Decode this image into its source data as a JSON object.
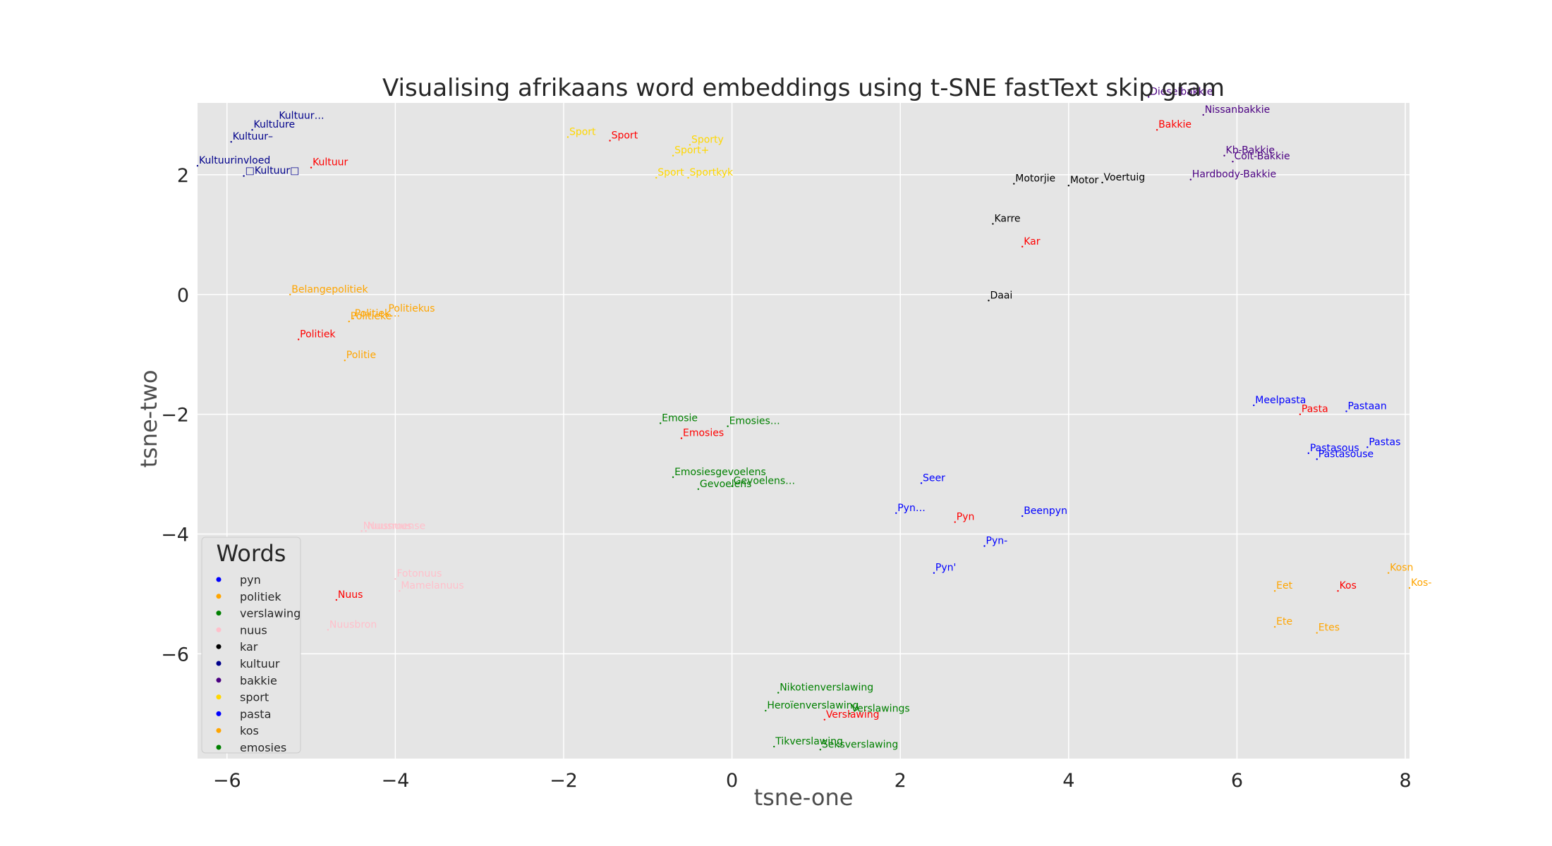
{
  "chart_data": {
    "type": "scatter",
    "title": "Visualising afrikaans word embeddings using t-SNE fastText skip gram",
    "xlabel": "tsne-one",
    "ylabel": "tsne-two",
    "xlim": [
      -6.35,
      8.05
    ],
    "ylim": [
      -7.75,
      3.2
    ],
    "xticks": [
      -6,
      -4,
      -2,
      0,
      2,
      4,
      6,
      8
    ],
    "yticks": [
      -6,
      -4,
      -2,
      0,
      2
    ],
    "xtick_labels": [
      "−6",
      "−4",
      "−2",
      "0",
      "2",
      "4",
      "6",
      "8"
    ],
    "ytick_labels": [
      "−6",
      "−4",
      "−2",
      "0",
      "2"
    ],
    "grid": true,
    "legend": {
      "title": "Words",
      "position": "lower-left",
      "entries": [
        {
          "label": "pyn",
          "color": "#0000ff"
        },
        {
          "label": "politiek",
          "color": "#ffa500"
        },
        {
          "label": "verslawing",
          "color": "#008000"
        },
        {
          "label": "nuus",
          "color": "#ffc0cb"
        },
        {
          "label": "kar",
          "color": "#000000"
        },
        {
          "label": "kultuur",
          "color": "#00008b"
        },
        {
          "label": "bakkie",
          "color": "#4b0082"
        },
        {
          "label": "sport",
          "color": "#ffd700"
        },
        {
          "label": "pasta",
          "color": "#0000ff"
        },
        {
          "label": "kos",
          "color": "#ffa500"
        },
        {
          "label": "emosies",
          "color": "#008000"
        }
      ]
    },
    "series": [
      {
        "name": "pyn",
        "color": "#0000ff",
        "points": [
          {
            "x": 2.65,
            "y": -3.8,
            "label": "Pyn",
            "color": "#ff0000"
          },
          {
            "x": 2.25,
            "y": -3.15,
            "label": "Seer"
          },
          {
            "x": 1.95,
            "y": -3.65,
            "label": "Pyn…"
          },
          {
            "x": 3.45,
            "y": -3.7,
            "label": "Beenpyn"
          },
          {
            "x": 3.0,
            "y": -4.2,
            "label": "Pyn-"
          },
          {
            "x": 2.4,
            "y": -4.65,
            "label": "Pyn'"
          }
        ]
      },
      {
        "name": "politiek",
        "color": "#ffa500",
        "points": [
          {
            "x": -5.15,
            "y": -0.75,
            "label": "Politiek",
            "color": "#ff0000"
          },
          {
            "x": -5.25,
            "y": 0.0,
            "label": "Belangepolitiek"
          },
          {
            "x": -4.55,
            "y": -0.45,
            "label": "Politieke"
          },
          {
            "x": -4.5,
            "y": -0.4,
            "label": "Politiek…"
          },
          {
            "x": -4.1,
            "y": -0.32,
            "label": "Politiekus"
          },
          {
            "x": -4.6,
            "y": -1.1,
            "label": "Politie"
          }
        ]
      },
      {
        "name": "verslawing",
        "color": "#008000",
        "points": [
          {
            "x": 1.1,
            "y": -7.1,
            "label": "Verslawing",
            "color": "#ff0000"
          },
          {
            "x": 0.55,
            "y": -6.65,
            "label": "Nikotienverslawing"
          },
          {
            "x": 0.4,
            "y": -6.95,
            "label": "Heroïenverslawing"
          },
          {
            "x": 1.4,
            "y": -7.0,
            "label": "Verslawings"
          },
          {
            "x": 0.5,
            "y": -7.55,
            "label": "Tikverslawing"
          },
          {
            "x": 1.05,
            "y": -7.6,
            "label": "Seksverslawing"
          }
        ]
      },
      {
        "name": "nuus",
        "color": "#ffc0cb",
        "points": [
          {
            "x": -4.7,
            "y": -5.1,
            "label": "Nuus",
            "color": "#ff0000"
          },
          {
            "x": -4.4,
            "y": -3.95,
            "label": "Nuusnuus"
          },
          {
            "x": -4.35,
            "y": -3.95,
            "label": "Nuusmense"
          },
          {
            "x": -4.0,
            "y": -4.75,
            "label": "Fotonuus"
          },
          {
            "x": -3.95,
            "y": -4.95,
            "label": "Mamelanuus"
          },
          {
            "x": -4.8,
            "y": -5.6,
            "label": "Nuusbron"
          }
        ]
      },
      {
        "name": "kar",
        "color": "#000000",
        "points": [
          {
            "x": 3.45,
            "y": 0.8,
            "label": "Kar",
            "color": "#ff0000"
          },
          {
            "x": 3.35,
            "y": 1.85,
            "label": "Motorjie"
          },
          {
            "x": 4.0,
            "y": 1.82,
            "label": "Motor"
          },
          {
            "x": 4.4,
            "y": 1.87,
            "label": "Voertuig"
          },
          {
            "x": 3.1,
            "y": 1.18,
            "label": "Karre"
          },
          {
            "x": 3.05,
            "y": -0.1,
            "label": "Daai"
          }
        ]
      },
      {
        "name": "kultuur",
        "color": "#00008b",
        "points": [
          {
            "x": -5.0,
            "y": 2.12,
            "label": "Kultuur",
            "color": "#ff0000"
          },
          {
            "x": -5.4,
            "y": 2.9,
            "label": "Kultuur…"
          },
          {
            "x": -5.7,
            "y": 2.75,
            "label": "Kultuure"
          },
          {
            "x": -5.95,
            "y": 2.55,
            "label": "Kultuur–"
          },
          {
            "x": -6.35,
            "y": 2.15,
            "label": "Kultuurinvloed"
          },
          {
            "x": -5.8,
            "y": 1.98,
            "label": "□Kultuur□"
          }
        ]
      },
      {
        "name": "bakkie",
        "color": "#4b0082",
        "points": [
          {
            "x": 5.05,
            "y": 2.75,
            "label": "Bakkie",
            "color": "#ff0000"
          },
          {
            "x": 4.95,
            "y": 3.3,
            "label": "Dieselbakkie"
          },
          {
            "x": 5.6,
            "y": 3.0,
            "label": "Nissanbakkie"
          },
          {
            "x": 5.85,
            "y": 2.32,
            "label": "Kb-Bakkie"
          },
          {
            "x": 5.95,
            "y": 2.22,
            "label": "Colt-Bakkie"
          },
          {
            "x": 5.45,
            "y": 1.92,
            "label": "Hardbody-Bakkie"
          }
        ]
      },
      {
        "name": "sport",
        "color": "#ffd700",
        "points": [
          {
            "x": -1.45,
            "y": 2.57,
            "label": "Sport",
            "color": "#ff0000"
          },
          {
            "x": -1.95,
            "y": 2.63,
            "label": "Sport"
          },
          {
            "x": -0.5,
            "y": 2.5,
            "label": "Sporty"
          },
          {
            "x": -0.7,
            "y": 2.32,
            "label": "Sport+"
          },
          {
            "x": -0.9,
            "y": 1.95,
            "label": "Sport"
          },
          {
            "x": -0.52,
            "y": 1.95,
            "label": "Sportkyk"
          }
        ]
      },
      {
        "name": "pasta",
        "color": "#0000ff",
        "points": [
          {
            "x": 6.75,
            "y": -2.0,
            "label": "Pasta",
            "color": "#ff0000"
          },
          {
            "x": 6.2,
            "y": -1.85,
            "label": "Meelpasta"
          },
          {
            "x": 7.3,
            "y": -1.95,
            "label": "Pastaan"
          },
          {
            "x": 7.55,
            "y": -2.55,
            "label": "Pastas"
          },
          {
            "x": 6.85,
            "y": -2.65,
            "label": "Pastasous"
          },
          {
            "x": 6.95,
            "y": -2.75,
            "label": "Pastasouse"
          }
        ]
      },
      {
        "name": "kos",
        "color": "#ffa500",
        "points": [
          {
            "x": 7.2,
            "y": -4.95,
            "label": "Kos",
            "color": "#ff0000"
          },
          {
            "x": 6.45,
            "y": -4.95,
            "label": "Eet"
          },
          {
            "x": 7.8,
            "y": -4.65,
            "label": "Kosn"
          },
          {
            "x": 8.05,
            "y": -4.9,
            "label": "Kos-"
          },
          {
            "x": 6.45,
            "y": -5.55,
            "label": "Ete"
          },
          {
            "x": 6.95,
            "y": -5.65,
            "label": "Etes"
          }
        ]
      },
      {
        "name": "emosies",
        "color": "#008000",
        "points": [
          {
            "x": -0.6,
            "y": -2.4,
            "label": "Emosies",
            "color": "#ff0000"
          },
          {
            "x": -0.85,
            "y": -2.15,
            "label": "Emosie"
          },
          {
            "x": -0.05,
            "y": -2.2,
            "label": "Emosies…"
          },
          {
            "x": -0.7,
            "y": -3.05,
            "label": "Emosiesgevoelens"
          },
          {
            "x": -0.4,
            "y": -3.25,
            "label": "Gevoelens"
          },
          {
            "x": 0.0,
            "y": -3.2,
            "label": "Gevoelens…"
          }
        ]
      }
    ]
  }
}
